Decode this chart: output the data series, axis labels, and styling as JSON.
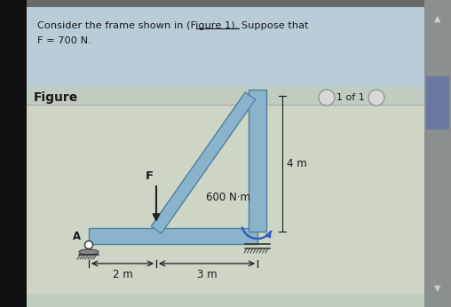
{
  "outer_bg": "#6a6a6a",
  "header_bg": "#b8cdd8",
  "figure_bg": "#c8d0c0",
  "scrollbar_bg": "#8a9090",
  "scrollbar_handle": "#6878a0",
  "frame_fill": "#8ab4cc",
  "frame_edge": "#5080a0",
  "text_dark": "#1a1a1a",
  "arrow_color": "#222222",
  "moment_color": "#3060c0",
  "dim_color": "#1a1a1a",
  "header_line1": "Consider the frame shown in (Figure 1). Suppose that",
  "header_line2": "F = 700 N.",
  "fig_label": "Figure",
  "nav_text": "1 of 1",
  "label_F": "F",
  "label_600": "600 N·m",
  "label_4m": "4 m",
  "label_2m": "2 m",
  "label_3m": "3 m",
  "label_A": "A"
}
